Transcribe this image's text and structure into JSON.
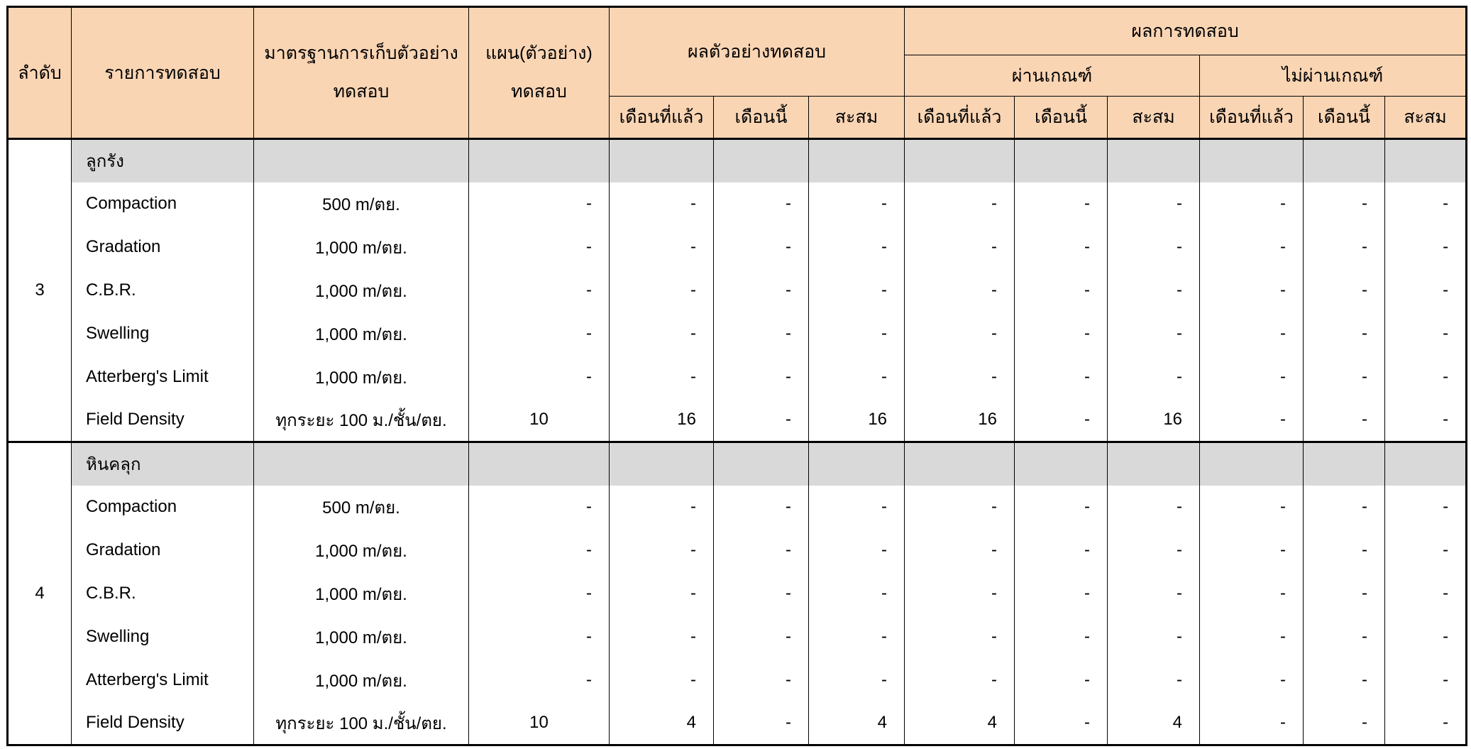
{
  "colors": {
    "header_bg": "#fad5b4",
    "category_bg": "#d9d9d9",
    "border": "#000000"
  },
  "header": {
    "order": "ลำดับ",
    "test_item": "รายการทดสอบ",
    "standard_line1": "มาตรฐานการเก็บตัวอย่าง",
    "standard_line2": "ทดสอบ",
    "plan_line1": "แผน(ตัวอย่าง)",
    "plan_line2": "ทดสอบ",
    "sample_results": "ผลตัวอย่างทดสอบ",
    "test_results": "ผลการทดสอบ",
    "pass": "ผ่านเกณฑ์",
    "fail": "ไม่ผ่านเกณฑ์",
    "last_month": "เดือนที่แล้ว",
    "this_month": "เดือนนี้",
    "cumulative": "สะสม"
  },
  "groups": [
    {
      "order": "3",
      "category": "ลูกรัง",
      "rows": [
        {
          "name": "Compaction",
          "standard": "500 m/ตย.",
          "cells": [
            "-",
            "-",
            "-",
            "-",
            "-",
            "-",
            "-",
            "-",
            "-",
            "-"
          ]
        },
        {
          "name": "Gradation",
          "standard": "1,000 m/ตย.",
          "cells": [
            "-",
            "-",
            "-",
            "-",
            "-",
            "-",
            "-",
            "-",
            "-",
            "-"
          ]
        },
        {
          "name": "C.B.R.",
          "standard": "1,000 m/ตย.",
          "cells": [
            "-",
            "-",
            "-",
            "-",
            "-",
            "-",
            "-",
            "-",
            "-",
            "-"
          ]
        },
        {
          "name": "Swelling",
          "standard": "1,000 m/ตย.",
          "cells": [
            "-",
            "-",
            "-",
            "-",
            "-",
            "-",
            "-",
            "-",
            "-",
            "-"
          ]
        },
        {
          "name": "Atterberg's Limit",
          "standard": "1,000 m/ตย.",
          "cells": [
            "-",
            "-",
            "-",
            "-",
            "-",
            "-",
            "-",
            "-",
            "-",
            "-"
          ]
        },
        {
          "name": "Field Density",
          "standard": "ทุกระยะ 100 ม./ชั้น/ตย.",
          "cells": [
            "10",
            "16",
            "-",
            "16",
            "16",
            "-",
            "16",
            "-",
            "-",
            "-"
          ]
        }
      ]
    },
    {
      "order": "4",
      "category": "หินคลุก",
      "rows": [
        {
          "name": "Compaction",
          "standard": "500 m/ตย.",
          "cells": [
            "-",
            "-",
            "-",
            "-",
            "-",
            "-",
            "-",
            "-",
            "-",
            "-"
          ]
        },
        {
          "name": "Gradation",
          "standard": "1,000 m/ตย.",
          "cells": [
            "-",
            "-",
            "-",
            "-",
            "-",
            "-",
            "-",
            "-",
            "-",
            "-"
          ]
        },
        {
          "name": "C.B.R.",
          "standard": "1,000 m/ตย.",
          "cells": [
            "-",
            "-",
            "-",
            "-",
            "-",
            "-",
            "-",
            "-",
            "-",
            "-"
          ]
        },
        {
          "name": "Swelling",
          "standard": "1,000 m/ตย.",
          "cells": [
            "-",
            "-",
            "-",
            "-",
            "-",
            "-",
            "-",
            "-",
            "-",
            "-"
          ]
        },
        {
          "name": "Atterberg's Limit",
          "standard": "1,000 m/ตย.",
          "cells": [
            "-",
            "-",
            "-",
            "-",
            "-",
            "-",
            "-",
            "-",
            "-",
            "-"
          ]
        },
        {
          "name": "Field Density",
          "standard": "ทุกระยะ 100 ม./ชั้น/ตย.",
          "cells": [
            "10",
            "4",
            "-",
            "4",
            "4",
            "-",
            "4",
            "-",
            "-",
            "-"
          ]
        }
      ]
    }
  ]
}
